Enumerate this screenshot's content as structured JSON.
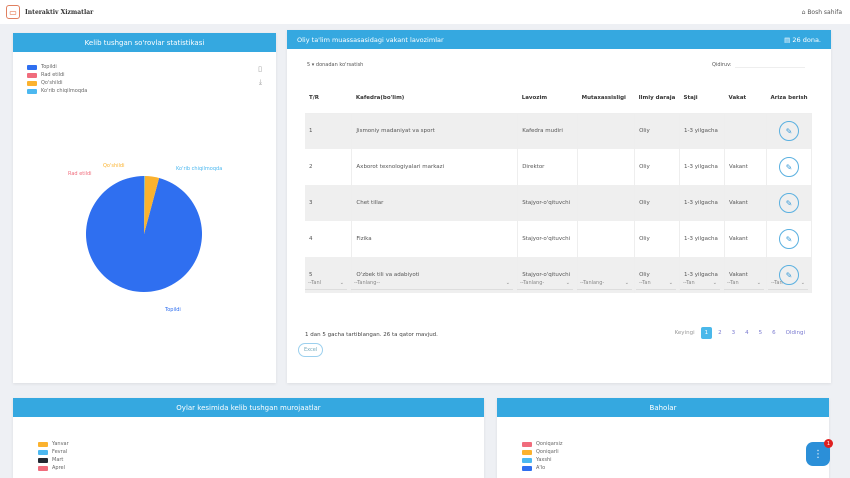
{
  "header": {
    "logo_text": "Interaktiv Xizmatlar",
    "home_link": "Bosh sahifa"
  },
  "stats_card": {
    "title": "Kelib tushgan so'rovlar statistikasi",
    "legend": [
      {
        "label": "Topildi",
        "color": "#2f6ff0"
      },
      {
        "label": "Rad etildi",
        "color": "#f06c7c"
      },
      {
        "label": "Qo'shildi",
        "color": "#fbb22e"
      },
      {
        "label": "Ko'rib chiqilmoqda",
        "color": "#4cb8f0"
      }
    ],
    "chart_data": {
      "type": "pie",
      "categories": [
        "Topildi",
        "Rad etildi",
        "Qo'shildi",
        "Ko'rib chiqilmoqda"
      ],
      "values": [
        96,
        0,
        4,
        0.2
      ],
      "colors": [
        "#2f6ff0",
        "#f06c7c",
        "#fbb22e",
        "#4cb8f0"
      ]
    }
  },
  "vacancy": {
    "title": "Oliy ta'lim muassasasidagi vakant lavozimlar",
    "count": "26 dona.",
    "length_value": "5",
    "length_label": "donadan ko'rsatish",
    "search_label": "Qidiruv:",
    "columns": [
      "T/R",
      "Kafedra(bo'lim)",
      "Lavozim",
      "Mutaxassisligi",
      "Ilmiy daraja",
      "Staji",
      "Vakat",
      "Ariza berish"
    ],
    "rows": [
      [
        "1",
        "Jismoniy madaniyat va sport",
        "Kafedra mudiri",
        "",
        "Oliy",
        "1-3 yilgacha",
        ""
      ],
      [
        "2",
        "Axborot texnologiyalari markazi",
        "Direktor",
        "",
        "Oliy",
        "1-3 yilgacha",
        "Vakant"
      ],
      [
        "3",
        "Chet tillar",
        "Stajyor-o'qituvchi",
        "",
        "Oliy",
        "1-3 yilgacha",
        "Vakant"
      ],
      [
        "4",
        "Fizika",
        "Stajyor-o'qituvchi",
        "",
        "Oliy",
        "1-3 yilgacha",
        "Vakant"
      ],
      [
        "5",
        "O'zbek tili va adabiyoti",
        "Stajyor-o'qituvchi",
        "",
        "Oliy",
        "1-3 yilgacha",
        "Vakant"
      ]
    ],
    "filters": [
      "--Tanl",
      "--Tanlang--",
      "--Tanlang-",
      "--Tanlang-",
      "--Tan",
      "--Tan",
      "--Tan",
      "--Tan"
    ],
    "info": "1 dan 5 gacha tartiblangan. 26 ta qator mavjud.",
    "print": "Excel",
    "pagination": {
      "prev": "Keyingi",
      "pages": [
        "1",
        "2",
        "3",
        "4",
        "5",
        "6"
      ],
      "next": "Oldingi"
    }
  },
  "monthly": {
    "title": "Oylar kesimida kelib tushgan murojaatlar",
    "legend": [
      {
        "label": "Yanvar",
        "color": "#fbb22e"
      },
      {
        "label": "Fevral",
        "color": "#4cb8f0"
      },
      {
        "label": "Mart",
        "color": "#222831"
      },
      {
        "label": "Aprel",
        "color": "#f06c7c"
      }
    ]
  },
  "ratings": {
    "title": "Baholar",
    "legend": [
      {
        "label": "Qoniqarsiz",
        "color": "#f06c7c"
      },
      {
        "label": "Qoniqarli",
        "color": "#fbb22e"
      },
      {
        "label": "Yaxshi",
        "color": "#4cb8f0"
      },
      {
        "label": "A'lo",
        "color": "#2f6ff0"
      }
    ]
  },
  "chat": {
    "badge": "1"
  }
}
